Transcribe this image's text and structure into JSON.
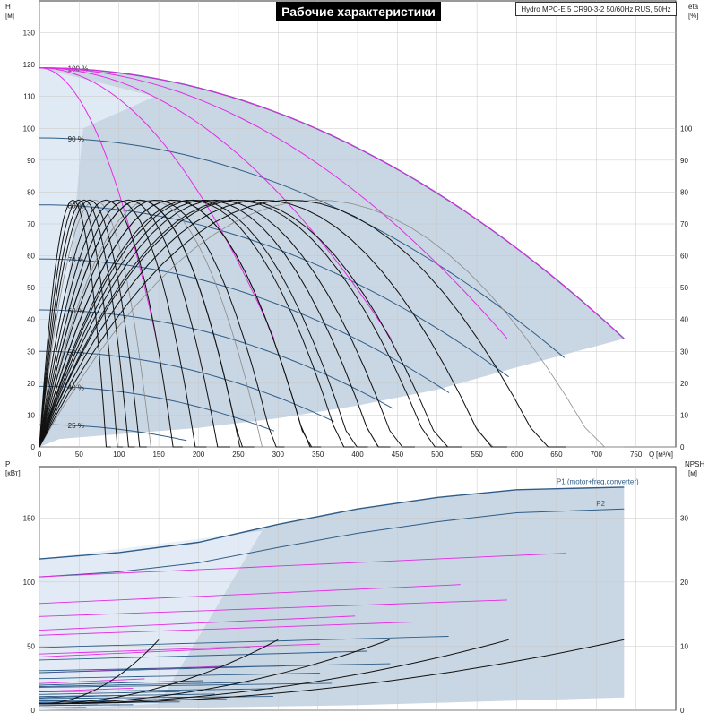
{
  "header": {
    "title": "Рабочие характеристики",
    "model": "Hydro MPC-E 5 CR90-3-2 50/60Hz RUS, 50Hz"
  },
  "colors": {
    "envelope": "#c9d6e3",
    "envelope_light": "#e6eff8",
    "curve_blue": "#2f5d88",
    "curve_magenta": "#e32ce3",
    "curve_black": "#111111",
    "curve_gray": "#8a8a8a",
    "axis": "#333333"
  },
  "chart_data": [
    {
      "type": "line",
      "name": "head",
      "axes": {
        "left": {
          "title": "H",
          "unit": "[м]",
          "ylim": [
            0,
            140
          ],
          "ticks": [
            0,
            10,
            20,
            30,
            40,
            50,
            60,
            70,
            80,
            90,
            100,
            110,
            120,
            130
          ]
        },
        "right": {
          "title": "eta",
          "unit": "[%]",
          "ylim": [
            0,
            140
          ],
          "ticks": [
            0,
            10,
            20,
            30,
            40,
            50,
            60,
            70,
            80,
            90,
            100
          ]
        },
        "bottom": {
          "title": "Q",
          "unit": "[м³/ч]",
          "xlim": [
            0,
            800
          ],
          "ticks": [
            0,
            50,
            100,
            150,
            200,
            250,
            300,
            350,
            400,
            450,
            500,
            550,
            600,
            650,
            700,
            750
          ]
        }
      },
      "grid": true,
      "speed_labels": [
        {
          "text": "100 %",
          "q": 30,
          "h": 119
        },
        {
          "text": "90 %",
          "q": 30,
          "h": 97
        },
        {
          "text": "80 %",
          "q": 30,
          "h": 76
        },
        {
          "text": "70 %",
          "q": 30,
          "h": 59
        },
        {
          "text": "60 %",
          "q": 30,
          "h": 43
        },
        {
          "text": "50 %",
          "q": 30,
          "h": 30
        },
        {
          "text": "40 %",
          "q": 30,
          "h": 19
        },
        {
          "text": "25 %",
          "q": 30,
          "h": 7
        }
      ],
      "operating_range_min": [
        [
          0,
          0
        ],
        [
          25,
          2.5
        ],
        [
          100,
          4
        ],
        [
          200,
          6
        ],
        [
          300,
          9
        ],
        [
          400,
          13
        ],
        [
          500,
          18
        ],
        [
          600,
          25
        ],
        [
          735,
          34
        ]
      ],
      "max_curve": {
        "h0": 119,
        "qmax": 735,
        "hmax_end": 34
      },
      "speed_curves": [
        {
          "h0": 119,
          "qmax": 735,
          "hend": 34
        },
        {
          "h0": 97,
          "qmax": 660,
          "hend": 28
        },
        {
          "h0": 76,
          "qmax": 590,
          "hend": 22
        },
        {
          "h0": 59,
          "qmax": 515,
          "hend": 17
        },
        {
          "h0": 43,
          "qmax": 445,
          "hend": 12
        },
        {
          "h0": 30,
          "qmax": 370,
          "hend": 8
        },
        {
          "h0": 19,
          "qmax": 295,
          "hend": 5
        },
        {
          "h0": 7,
          "qmax": 185,
          "hend": 2
        }
      ],
      "pump_curves": [
        {
          "q_end": 147,
          "h_end": 34
        },
        {
          "q_end": 295,
          "h_end": 34
        },
        {
          "q_end": 442,
          "h_end": 34
        },
        {
          "q_end": 588,
          "h_end": 34
        },
        {
          "q_end": 735,
          "h_end": 34
        }
      ],
      "efficiency_curves": [
        {
          "peak_q": 70,
          "peak_eta": 77.5,
          "q_end": 150
        },
        {
          "peak_q": 140,
          "peak_eta": 77.5,
          "q_end": 300
        },
        {
          "peak_q": 210,
          "peak_eta": 77.5,
          "q_end": 440
        },
        {
          "peak_q": 280,
          "peak_eta": 77.5,
          "q_end": 590
        },
        {
          "peak_q": 350,
          "peak_eta": 77.5,
          "q_end": 735
        }
      ]
    },
    {
      "type": "line",
      "name": "power",
      "axes": {
        "left": {
          "title": "P",
          "unit": "[кВт]",
          "ylim": [
            0,
            190
          ],
          "ticks": [
            0,
            50,
            100,
            150
          ]
        },
        "right": {
          "title": "NPSH",
          "unit": "[м]",
          "ylim": [
            0,
            38
          ],
          "ticks": [
            0,
            10,
            20,
            30
          ]
        },
        "bottom": {
          "xlim": [
            0,
            800
          ],
          "ticks": [
            0,
            50,
            100,
            150,
            200,
            250,
            300,
            350,
            400,
            450,
            500,
            550,
            600,
            650,
            700,
            750
          ]
        }
      },
      "grid": true,
      "series_labels": [
        {
          "text": "P1 (motor+freq.converter)",
          "q": 650,
          "p": 175
        },
        {
          "text": "P2",
          "q": 700,
          "p": 158
        }
      ],
      "p1_max": [
        [
          0,
          118
        ],
        [
          100,
          123
        ],
        [
          200,
          131
        ],
        [
          300,
          145
        ],
        [
          400,
          157
        ],
        [
          500,
          166
        ],
        [
          600,
          172
        ],
        [
          735,
          174
        ]
      ],
      "p2_max": [
        [
          0,
          104
        ],
        [
          100,
          108
        ],
        [
          200,
          115
        ],
        [
          300,
          127
        ],
        [
          400,
          138
        ],
        [
          500,
          147
        ],
        [
          600,
          154
        ],
        [
          735,
          157
        ]
      ],
      "npsh_curves": [
        {
          "q_end": 150,
          "npsh_end": 11
        },
        {
          "q_end": 300,
          "npsh_end": 11
        },
        {
          "q_end": 440,
          "npsh_end": 11
        },
        {
          "q_end": 590,
          "npsh_end": 11
        },
        {
          "q_end": 735,
          "npsh_end": 11
        }
      ]
    }
  ]
}
